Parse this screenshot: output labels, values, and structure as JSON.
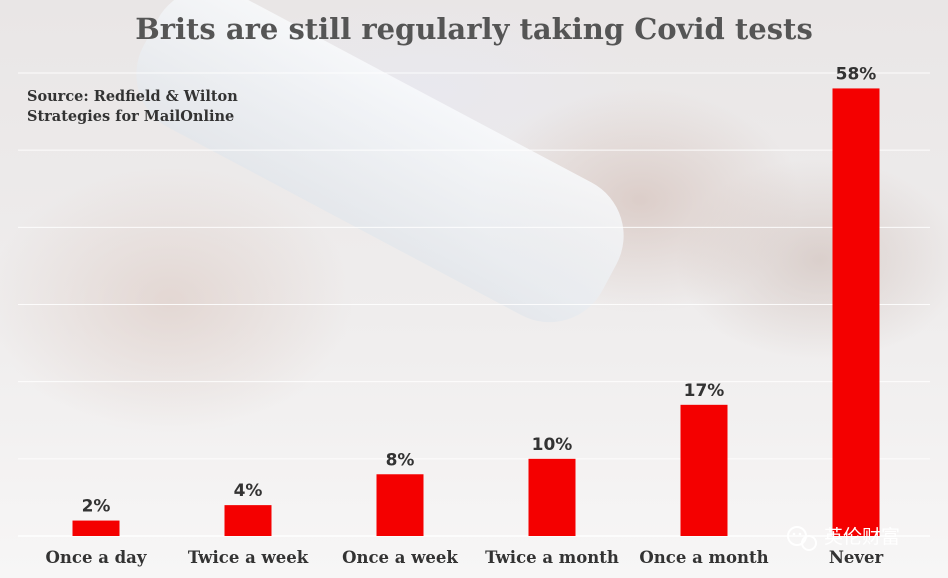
{
  "colors": {
    "bar": "#f40000",
    "grid": "#ffffff",
    "text": "#333333",
    "title": "#555555"
  },
  "chart_data": {
    "type": "bar",
    "title": "Brits are still regularly taking Covid tests",
    "source_lines": [
      "Source: Redfield & Wilton",
      "Strategies for MailOnline"
    ],
    "categories": [
      "Once a day",
      "Twice a week",
      "Once a week",
      "Twice a month",
      "Once a month",
      "Never"
    ],
    "values": [
      2,
      4,
      8,
      10,
      17,
      58
    ],
    "value_labels": [
      "2%",
      "4%",
      "8%",
      "10%",
      "17%",
      "58%"
    ],
    "ylim": [
      0,
      60
    ],
    "grid": true,
    "legend": "none"
  },
  "watermark": {
    "icon": "wechat-icon",
    "text": "英伦财富"
  }
}
